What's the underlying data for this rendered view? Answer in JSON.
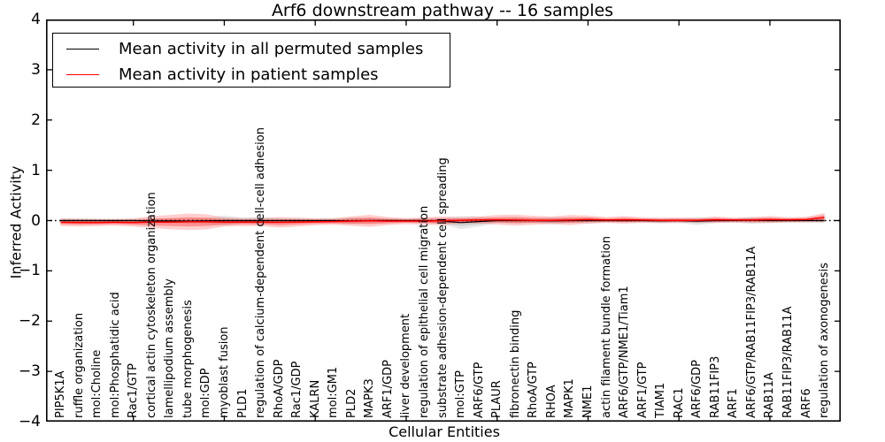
{
  "figure": {
    "title": "Arf6 downstream pathway -- 16 samples",
    "xlabel": "Cellular Entities",
    "ylabel": "Inferred Activity"
  },
  "legend": {
    "items": [
      {
        "label": "Mean activity in all permuted samples",
        "color": "#000000"
      },
      {
        "label": "Mean activity in patient samples",
        "color": "#ff0000"
      }
    ]
  },
  "chart_data": {
    "type": "line",
    "title": "Arf6 downstream pathway -- 16 samples",
    "xlabel": "Cellular Entities",
    "ylabel": "Inferred Activity",
    "ylim": [
      -4,
      4
    ],
    "yticks": [
      4,
      3,
      2,
      1,
      0,
      -1,
      -2,
      -3,
      -4
    ],
    "xtick_mark_indices": [
      4,
      9,
      14,
      19,
      24,
      29,
      34,
      39
    ],
    "grid": false,
    "legend_position": "upper-left",
    "zero_line": {
      "style": "dotted",
      "color": "#000000",
      "value": 0
    },
    "categories": [
      "PIP5K1A",
      "ruffle organization",
      "mol:Choline",
      "mol:Phosphatidic acid",
      "Rac1/GTP",
      "cortical actin cytoskeleton organization",
      "lamellipodium assembly",
      "tube morphogenesis",
      "mol:GDP",
      "myoblast fusion",
      "PLD1",
      "regulation of calcium-dependent cell-cell adhesion",
      "RhoA/GDP",
      "Rac1/GDP",
      "KALRN",
      "mol:GM1",
      "PLD2",
      "MAPK3",
      "ARF1/GDP",
      "liver development",
      "regulation of epithelial cell migration",
      "substrate adhesion-dependent cell spreading",
      "mol:GTP",
      "ARF6/GTP",
      "PLAUR",
      "fibronectin binding",
      "RhoA/GTP",
      "RHOA",
      "MAPK1",
      "NME1",
      "actin filament bundle formation",
      "ARF6/GTP/NME1/Tiam1",
      "ARF1/GTP",
      "TIAM1",
      "RAC1",
      "ARF6/GDP",
      "RAB11FIP3",
      "ARF1",
      "ARF6/GTP/RAB11FIP3/RAB11A",
      "RAB11A",
      "RAB11FIP3/RAB11A",
      "ARF6",
      "regulation of axonogenesis"
    ],
    "series": [
      {
        "name": "Mean activity in all permuted samples",
        "color": "#000000",
        "band_color": "#969696",
        "values": [
          0.0,
          0.0,
          0.0,
          0.0,
          0.0,
          -0.005,
          -0.005,
          -0.01,
          -0.005,
          0.0,
          0.0,
          0.0,
          0.0,
          0.0,
          0.0,
          0.0,
          -0.005,
          0.0,
          0.0,
          0.0,
          0.0,
          -0.01,
          -0.04,
          -0.02,
          0.0,
          0.0,
          0.0,
          -0.005,
          0.0,
          0.0,
          0.0,
          0.0,
          0.0,
          -0.005,
          0.0,
          -0.01,
          0.0,
          0.0,
          0.005,
          0.0,
          0.0,
          0.0,
          0.0
        ],
        "band_halfwidth": [
          0.045,
          0.04,
          0.04,
          0.035,
          0.04,
          0.05,
          0.05,
          0.05,
          0.06,
          0.1,
          0.06,
          0.075,
          0.05,
          0.045,
          0.04,
          0.045,
          0.07,
          0.05,
          0.045,
          0.04,
          0.045,
          0.06,
          0.13,
          0.1,
          0.05,
          0.06,
          0.05,
          0.07,
          0.05,
          0.06,
          0.04,
          0.045,
          0.04,
          0.055,
          0.045,
          0.08,
          0.05,
          0.04,
          0.07,
          0.05,
          0.045,
          0.04,
          0.045
        ]
      },
      {
        "name": "Mean activity in patient samples",
        "color": "#ff0000",
        "band_color": "#ff2020",
        "values": [
          -0.035,
          -0.04,
          -0.04,
          -0.035,
          -0.04,
          -0.03,
          -0.03,
          -0.025,
          -0.025,
          -0.03,
          -0.03,
          -0.03,
          -0.035,
          -0.03,
          -0.025,
          -0.02,
          -0.01,
          -0.005,
          -0.01,
          -0.01,
          -0.01,
          -0.005,
          0.005,
          0.01,
          0.015,
          0.01,
          0.005,
          0.005,
          0.01,
          0.02,
          0.01,
          0.015,
          0.01,
          0.005,
          0.005,
          0.005,
          0.015,
          0.01,
          0.01,
          0.02,
          0.015,
          0.02,
          0.06
        ],
        "band_halfwidth": [
          0.075,
          0.08,
          0.07,
          0.065,
          0.08,
          0.12,
          0.14,
          0.165,
          0.15,
          0.09,
          0.08,
          0.08,
          0.105,
          0.09,
          0.07,
          0.065,
          0.095,
          0.12,
          0.08,
          0.06,
          0.075,
          0.09,
          0.06,
          0.07,
          0.095,
          0.11,
          0.09,
          0.075,
          0.1,
          0.08,
          0.06,
          0.075,
          0.055,
          0.05,
          0.055,
          0.045,
          0.065,
          0.05,
          0.055,
          0.07,
          0.05,
          0.055,
          0.09
        ]
      }
    ]
  }
}
